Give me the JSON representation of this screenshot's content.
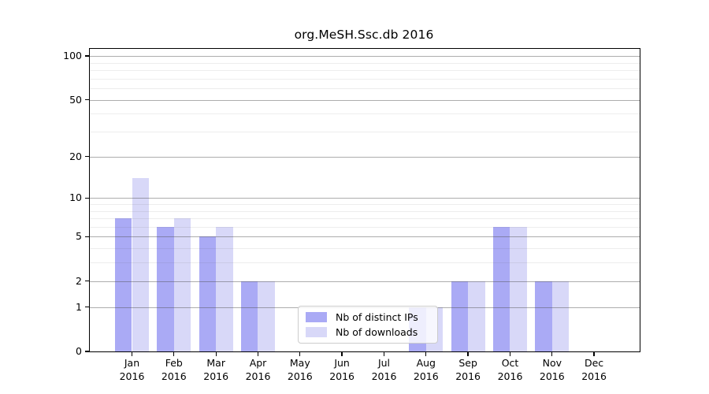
{
  "chart_data": {
    "type": "bar",
    "title": "org.MeSH.Ssc.db 2016",
    "categories": [
      "Jan",
      "Feb",
      "Mar",
      "Apr",
      "May",
      "Jun",
      "Jul",
      "Aug",
      "Sep",
      "Oct",
      "Nov",
      "Dec"
    ],
    "year": "2016",
    "series": [
      {
        "name": "Nb of distinct IPs",
        "color": "#aaaaf5",
        "values": [
          7,
          6,
          5,
          2,
          0,
          0,
          0,
          1,
          2,
          6,
          2,
          0
        ]
      },
      {
        "name": "Nb of downloads",
        "color": "#d8d8f8",
        "values": [
          14,
          7,
          6,
          2,
          0,
          0,
          0,
          1,
          2,
          6,
          2,
          0
        ]
      }
    ],
    "y_axis": {
      "scale": "log10(v+1)",
      "major_ticks": [
        0,
        1,
        2,
        5,
        10,
        20,
        50,
        100
      ],
      "minor_ticks": [
        3,
        4,
        6,
        7,
        8,
        9,
        30,
        40,
        60,
        70,
        80,
        90
      ],
      "max": 100
    },
    "grid": "on, drawn above bars",
    "legend_position": "lower center"
  }
}
